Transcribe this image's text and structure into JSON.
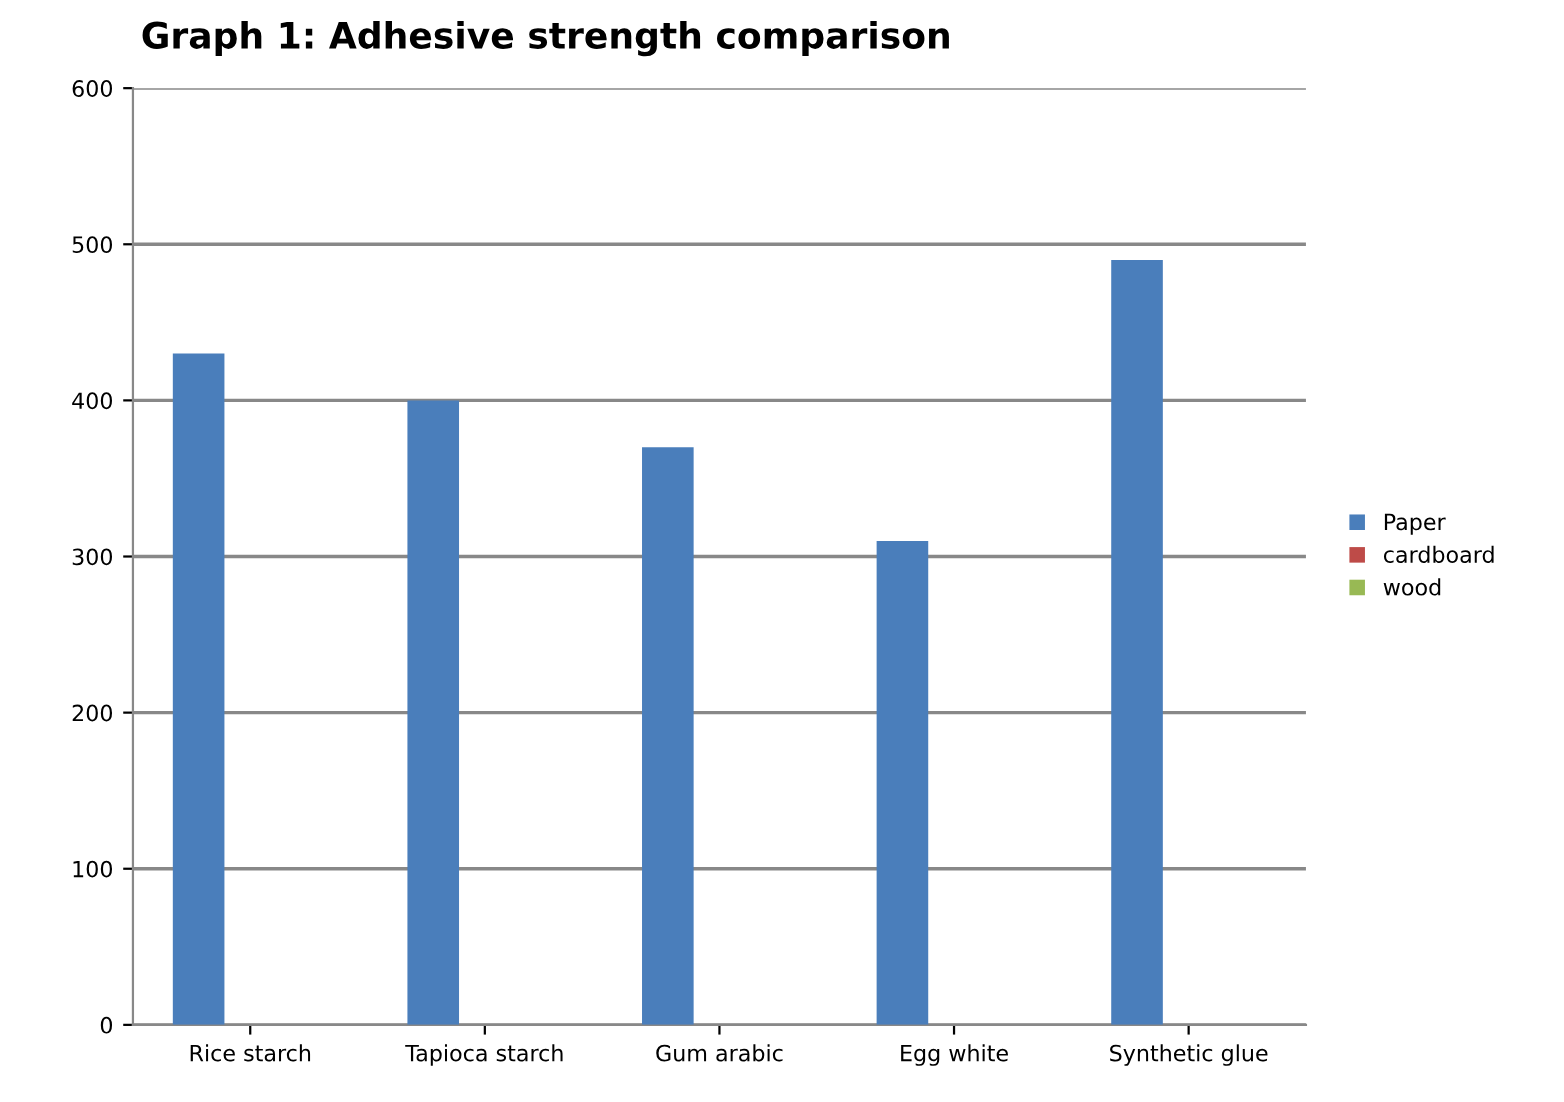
{
  "chart_data": {
    "type": "bar",
    "title": "Graph 1: Adhesive strength comparison",
    "categories": [
      "Rice starch",
      "Tapioca starch",
      "Gum arabic",
      "Egg white",
      "Synthetic glue"
    ],
    "series": [
      {
        "name": "Paper",
        "color": "#4a7ebb",
        "values": [
          430,
          400,
          370,
          310,
          490
        ]
      },
      {
        "name": "cardboard",
        "color": "#be4b48",
        "values": [
          null,
          null,
          null,
          null,
          null
        ]
      },
      {
        "name": "wood",
        "color": "#98b954",
        "values": [
          null,
          null,
          null,
          null,
          null
        ]
      }
    ],
    "ylim": [
      0,
      600
    ],
    "yticks": [
      0,
      100,
      200,
      300,
      400,
      500,
      600
    ],
    "grid": "y",
    "legend": "right"
  }
}
